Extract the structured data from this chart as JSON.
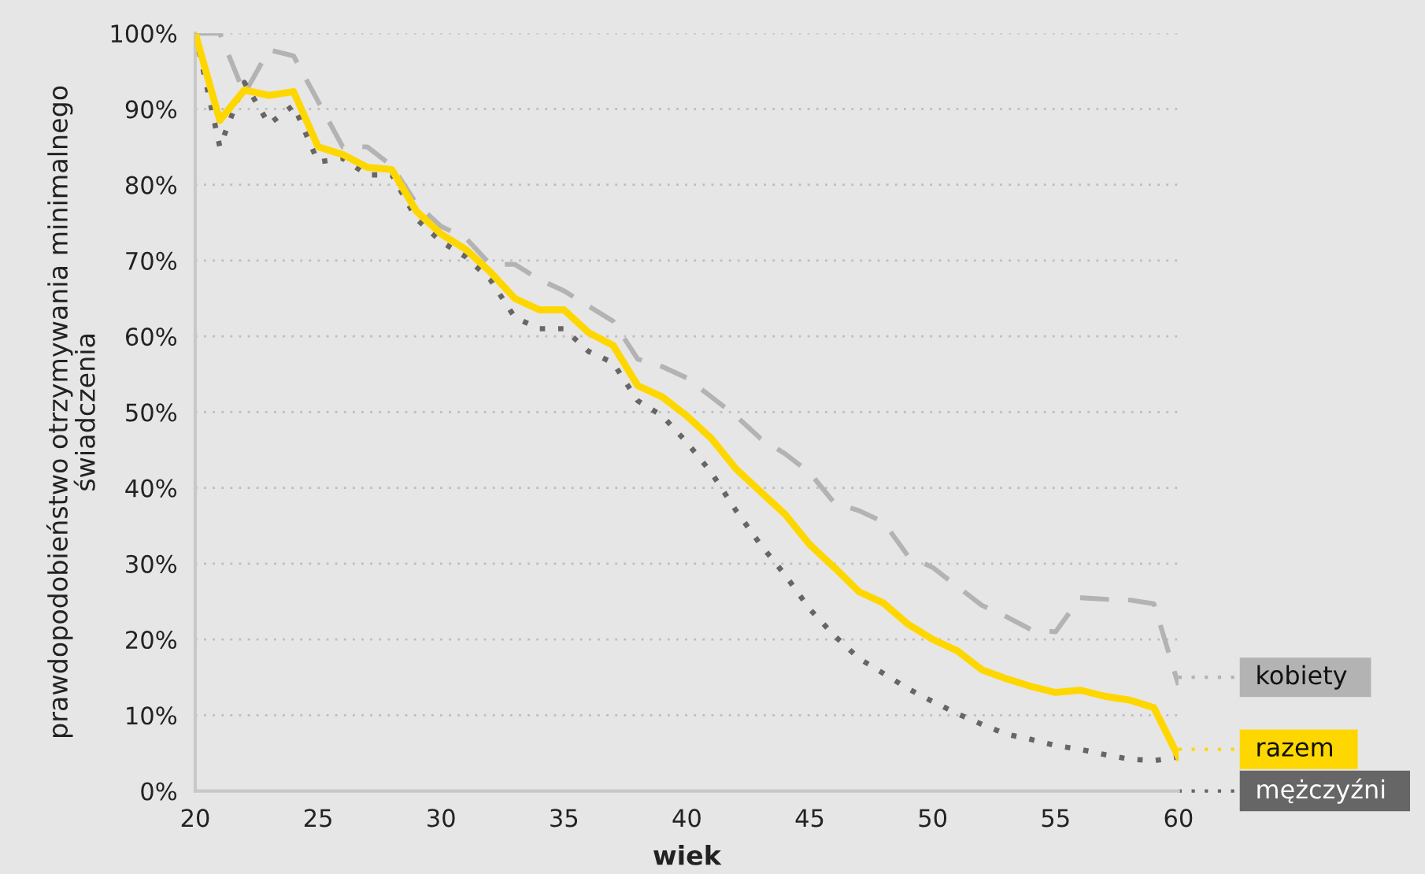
{
  "chart_data": {
    "type": "line",
    "xlabel": "wiek",
    "ylabel": "prawdopodobieństwo otrzymywania minimalnego\nświadczenia",
    "x": [
      20,
      21,
      22,
      23,
      24,
      25,
      26,
      27,
      28,
      29,
      30,
      31,
      32,
      33,
      34,
      35,
      36,
      37,
      38,
      39,
      40,
      41,
      42,
      43,
      44,
      45,
      46,
      47,
      48,
      49,
      50,
      51,
      52,
      53,
      54,
      55,
      56,
      57,
      58,
      59,
      60
    ],
    "xlim": [
      20,
      60
    ],
    "xticks": [
      20,
      25,
      30,
      35,
      40,
      45,
      50,
      55,
      60
    ],
    "ylim": [
      0,
      100
    ],
    "yticks": [
      {
        "value": 0,
        "label": "0%"
      },
      {
        "value": 10,
        "label": "10%"
      },
      {
        "value": 20,
        "label": "20%"
      },
      {
        "value": 30,
        "label": "30%"
      },
      {
        "value": 40,
        "label": "40%"
      },
      {
        "value": 50,
        "label": "50%"
      },
      {
        "value": 60,
        "label": "60%"
      },
      {
        "value": 70,
        "label": "70%"
      },
      {
        "value": 80,
        "label": "80%"
      },
      {
        "value": 90,
        "label": "90%"
      },
      {
        "value": 100,
        "label": "100%"
      }
    ],
    "grid": "y",
    "legend": "right",
    "series": [
      {
        "name": "kobiety",
        "color": "#b3b3b3",
        "line_style": "dashed",
        "values": [
          100,
          100,
          92,
          97.8,
          97,
          91,
          85,
          85,
          82.5,
          77.5,
          74.5,
          73,
          69.5,
          69.5,
          67.5,
          66,
          64,
          62,
          57,
          56,
          54.5,
          52,
          49.5,
          46.5,
          44.5,
          42,
          38,
          37,
          35.5,
          31,
          29.5,
          27,
          24.5,
          23,
          21.3,
          21,
          25.5,
          25.3,
          25.2,
          24.7,
          14
        ]
      },
      {
        "name": "razem",
        "color": "#ffd700",
        "line_style": "solid",
        "values": [
          100,
          88.5,
          92.5,
          91.8,
          92.3,
          85,
          84,
          82.3,
          82,
          76.5,
          73.5,
          71.5,
          68.5,
          65,
          63.5,
          63.5,
          60.5,
          58.8,
          53.5,
          52,
          49.5,
          46.5,
          42.5,
          39.5,
          36.5,
          32.5,
          29.5,
          26.3,
          24.8,
          22,
          20,
          18.5,
          16,
          14.8,
          13.8,
          13,
          13.3,
          12.5,
          12,
          11,
          4.5
        ]
      },
      {
        "name": "mężczyźni",
        "color": "#666666",
        "line_style": "dotted",
        "values": [
          100,
          85,
          93.5,
          88,
          90.5,
          83,
          83.5,
          81.3,
          81.3,
          75.5,
          72.5,
          70.5,
          67.5,
          62.5,
          61,
          61,
          58,
          56.5,
          51.5,
          49.5,
          46,
          42,
          37,
          32.5,
          28.5,
          24,
          20.5,
          17.5,
          15.5,
          13.5,
          11.8,
          10.2,
          8.8,
          7.5,
          6.8,
          6,
          5.5,
          4.8,
          4.2,
          4,
          4.5
        ]
      }
    ]
  }
}
